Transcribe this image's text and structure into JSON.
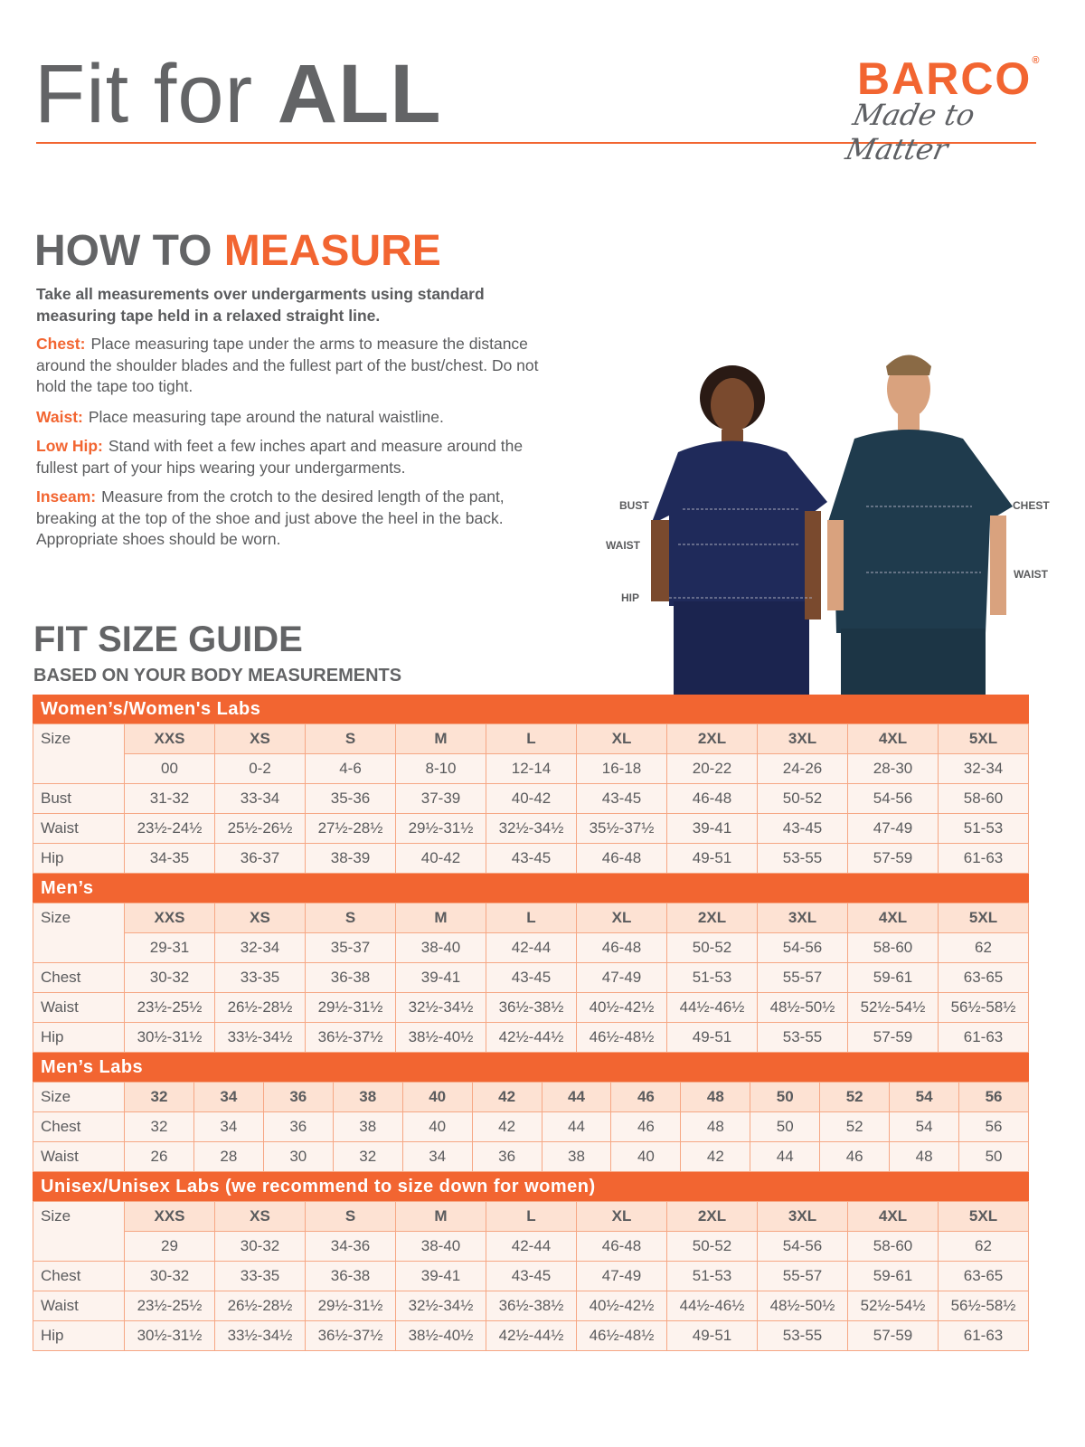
{
  "header": {
    "title_light": "Fit for ",
    "title_bold": "ALL"
  },
  "logo": {
    "brand": "BARCO",
    "registered": "®",
    "tagline": "Made to Matter"
  },
  "how_to_measure": {
    "title_gray": "HOW TO ",
    "title_orange": "MEASURE",
    "intro": "Take all measurements over undergarments using standard measuring tape held in a relaxed straight line.",
    "items": [
      {
        "key": "Chest:",
        "text": "Place measuring tape under the arms to measure the distance around the shoulder blades and the fullest part of the bust/chest. Do not hold the tape too tight."
      },
      {
        "key": "Waist:",
        "text": "Place measuring tape around the natural waistline."
      },
      {
        "key": "Low Hip:",
        "text": "Stand with feet a few inches apart and measure around the fullest part of your hips wearing your undergarments."
      },
      {
        "key": "Inseam:",
        "text": "Measure from the crotch to the desired length of the pant, breaking at the top of the shoe and just above the heel in the back. Appropriate shoes should be worn."
      }
    ]
  },
  "figure_labels": {
    "bust": "BUST",
    "waist_w": "WAIST",
    "hip": "HIP",
    "chest": "CHEST",
    "waist_m": "WAIST"
  },
  "guide": {
    "title": "FIT SIZE GUIDE",
    "subtitle": "BASED ON YOUR BODY MEASUREMENTS"
  },
  "colors": {
    "accent": "#f26531",
    "header_cell": "#fde2d3",
    "cell": "#fdf3ee",
    "text": "#5a5b5d"
  },
  "tables": [
    {
      "title": "Women’s/Women's Labs",
      "sizes": [
        "XXS",
        "XS",
        "S",
        "M",
        "L",
        "XL",
        "2XL",
        "3XL",
        "4XL",
        "5XL"
      ],
      "numeric": [
        "00",
        "0-2",
        "4-6",
        "8-10",
        "12-14",
        "16-18",
        "20-22",
        "24-26",
        "28-30",
        "32-34"
      ],
      "rows": [
        {
          "label": "Bust",
          "values": [
            "31-32",
            "33-34",
            "35-36",
            "37-39",
            "40-42",
            "43-45",
            "46-48",
            "50-52",
            "54-56",
            "58-60"
          ]
        },
        {
          "label": "Waist",
          "values": [
            "23½-24½",
            "25½-26½",
            "27½-28½",
            "29½-31½",
            "32½-34½",
            "35½-37½",
            "39-41",
            "43-45",
            "47-49",
            "51-53"
          ]
        },
        {
          "label": "Hip",
          "values": [
            "34-35",
            "36-37",
            "38-39",
            "40-42",
            "43-45",
            "46-48",
            "49-51",
            "53-55",
            "57-59",
            "61-63"
          ]
        }
      ]
    },
    {
      "title": "Men’s",
      "sizes": [
        "XXS",
        "XS",
        "S",
        "M",
        "L",
        "XL",
        "2XL",
        "3XL",
        "4XL",
        "5XL"
      ],
      "numeric": [
        "29-31",
        "32-34",
        "35-37",
        "38-40",
        "42-44",
        "46-48",
        "50-52",
        "54-56",
        "58-60",
        "62"
      ],
      "rows": [
        {
          "label": "Chest",
          "values": [
            "30-32",
            "33-35",
            "36-38",
            "39-41",
            "43-45",
            "47-49",
            "51-53",
            "55-57",
            "59-61",
            "63-65"
          ]
        },
        {
          "label": "Waist",
          "values": [
            "23½-25½",
            "26½-28½",
            "29½-31½",
            "32½-34½",
            "36½-38½",
            "40½-42½",
            "44½-46½",
            "48½-50½",
            "52½-54½",
            "56½-58½"
          ]
        },
        {
          "label": "Hip",
          "values": [
            "30½-31½",
            "33½-34½",
            "36½-37½",
            "38½-40½",
            "42½-44½",
            "46½-48½",
            "49-51",
            "53-55",
            "57-59",
            "61-63"
          ]
        }
      ]
    },
    {
      "title": "Men’s Labs",
      "sizes": [
        "32",
        "34",
        "36",
        "38",
        "40",
        "42",
        "44",
        "46",
        "48",
        "50",
        "52",
        "54",
        "56"
      ],
      "rows": [
        {
          "label": "Chest",
          "values": [
            "32",
            "34",
            "36",
            "38",
            "40",
            "42",
            "44",
            "46",
            "48",
            "50",
            "52",
            "54",
            "56"
          ]
        },
        {
          "label": "Waist",
          "values": [
            "26",
            "28",
            "30",
            "32",
            "34",
            "36",
            "38",
            "40",
            "42",
            "44",
            "46",
            "48",
            "50"
          ]
        }
      ]
    },
    {
      "title": "Unisex/Unisex Labs (we recommend to size down for women)",
      "sizes": [
        "XXS",
        "XS",
        "S",
        "M",
        "L",
        "XL",
        "2XL",
        "3XL",
        "4XL",
        "5XL"
      ],
      "numeric": [
        "29",
        "30-32",
        "34-36",
        "38-40",
        "42-44",
        "46-48",
        "50-52",
        "54-56",
        "58-60",
        "62"
      ],
      "rows": [
        {
          "label": "Chest",
          "values": [
            "30-32",
            "33-35",
            "36-38",
            "39-41",
            "43-45",
            "47-49",
            "51-53",
            "55-57",
            "59-61",
            "63-65"
          ]
        },
        {
          "label": "Waist",
          "values": [
            "23½-25½",
            "26½-28½",
            "29½-31½",
            "32½-34½",
            "36½-38½",
            "40½-42½",
            "44½-46½",
            "48½-50½",
            "52½-54½",
            "56½-58½"
          ]
        },
        {
          "label": "Hip",
          "values": [
            "30½-31½",
            "33½-34½",
            "36½-37½",
            "38½-40½",
            "42½-44½",
            "46½-48½",
            "49-51",
            "53-55",
            "57-59",
            "61-63"
          ]
        }
      ]
    }
  ],
  "size_label": "Size"
}
